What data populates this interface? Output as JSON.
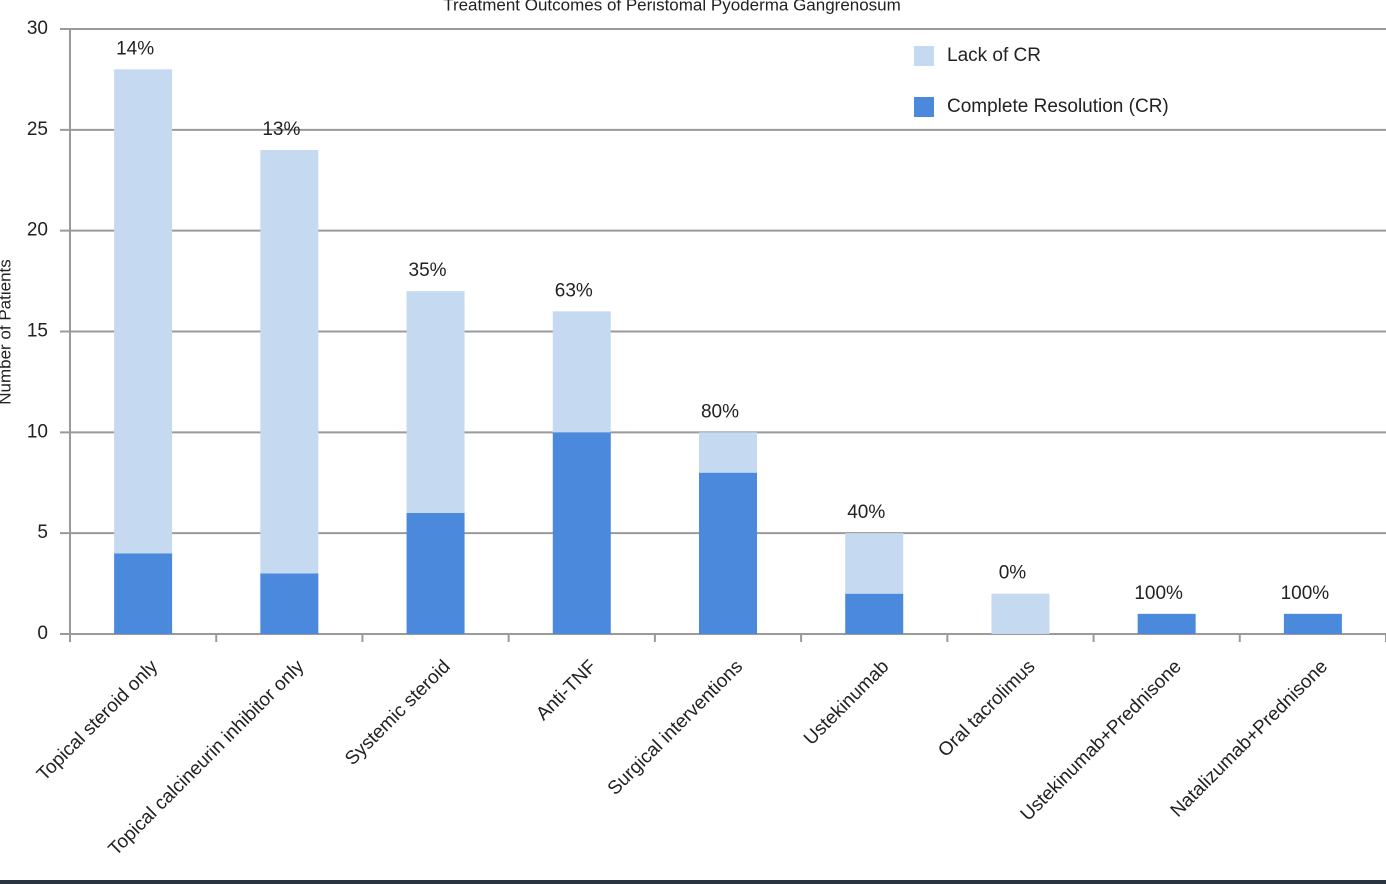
{
  "chart_data": {
    "type": "stacked-bar",
    "title": "Treatment Outcomes of Peristomal Pyoderma Gangrenosum",
    "y_label": "Number of Patients",
    "categories": [
      "Topical steroid only",
      "Topical calcineurin inhibitor only",
      "Systemic steroid",
      "Anti-TNF",
      "Surgical interventions",
      "Ustekinumab",
      "Oral tacrolimus",
      "Ustekinumab+Prednisone",
      "Natalizumab+Prednisone"
    ],
    "series": [
      {
        "name": "Complete Resolution (CR)",
        "color": "#4a89dc",
        "values": [
          4,
          3,
          6,
          10,
          8,
          2,
          0,
          1,
          1
        ]
      },
      {
        "name": "Lack of CR",
        "color": "#c5d9f1",
        "values": [
          24,
          21,
          11,
          6,
          2,
          3,
          2,
          0,
          0
        ]
      }
    ],
    "annotations": [
      "14%",
      "13%",
      "35%",
      "63%",
      "80%",
      "40%",
      "0%",
      "100%",
      "100%"
    ],
    "ylim": [
      0,
      30
    ],
    "yticks": [
      0,
      5,
      10,
      15,
      20,
      25,
      30
    ],
    "grid": true
  }
}
